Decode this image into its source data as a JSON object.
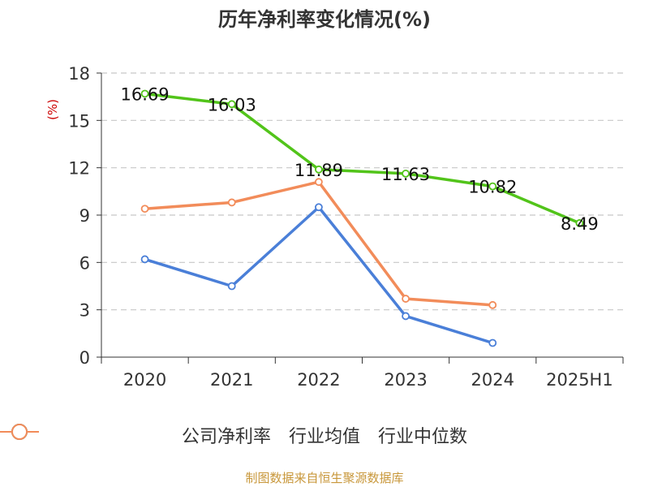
{
  "title": "历年净利率变化情况(%)",
  "unit": "(%)",
  "footer": "制图数据来自恒生聚源数据库",
  "chart_data": {
    "type": "line",
    "title": "历年净利率变化情况(%)",
    "ylabel": "(%)",
    "xlabel": "",
    "categories": [
      "2020",
      "2021",
      "2022",
      "2023",
      "2024",
      "2025H1"
    ],
    "ylim": [
      0,
      18
    ],
    "yticks": [
      0,
      3,
      6,
      9,
      12,
      15,
      18
    ],
    "grid": true,
    "legend_position": "bottom",
    "series": [
      {
        "name": "公司净利率",
        "color": "#52c41a",
        "values": [
          16.69,
          16.03,
          11.89,
          11.63,
          10.82,
          8.49
        ],
        "labels": [
          "16.69",
          "16.03",
          "11.89",
          "11.63",
          "10.82",
          "8.49"
        ]
      },
      {
        "name": "行业均值",
        "color": "#4a7fd8",
        "values": [
          6.2,
          4.5,
          9.5,
          2.6,
          0.9,
          null
        ]
      },
      {
        "name": "行业中位数",
        "color": "#f28c5a",
        "values": [
          9.4,
          9.8,
          11.1,
          3.7,
          3.3,
          null
        ]
      }
    ]
  }
}
